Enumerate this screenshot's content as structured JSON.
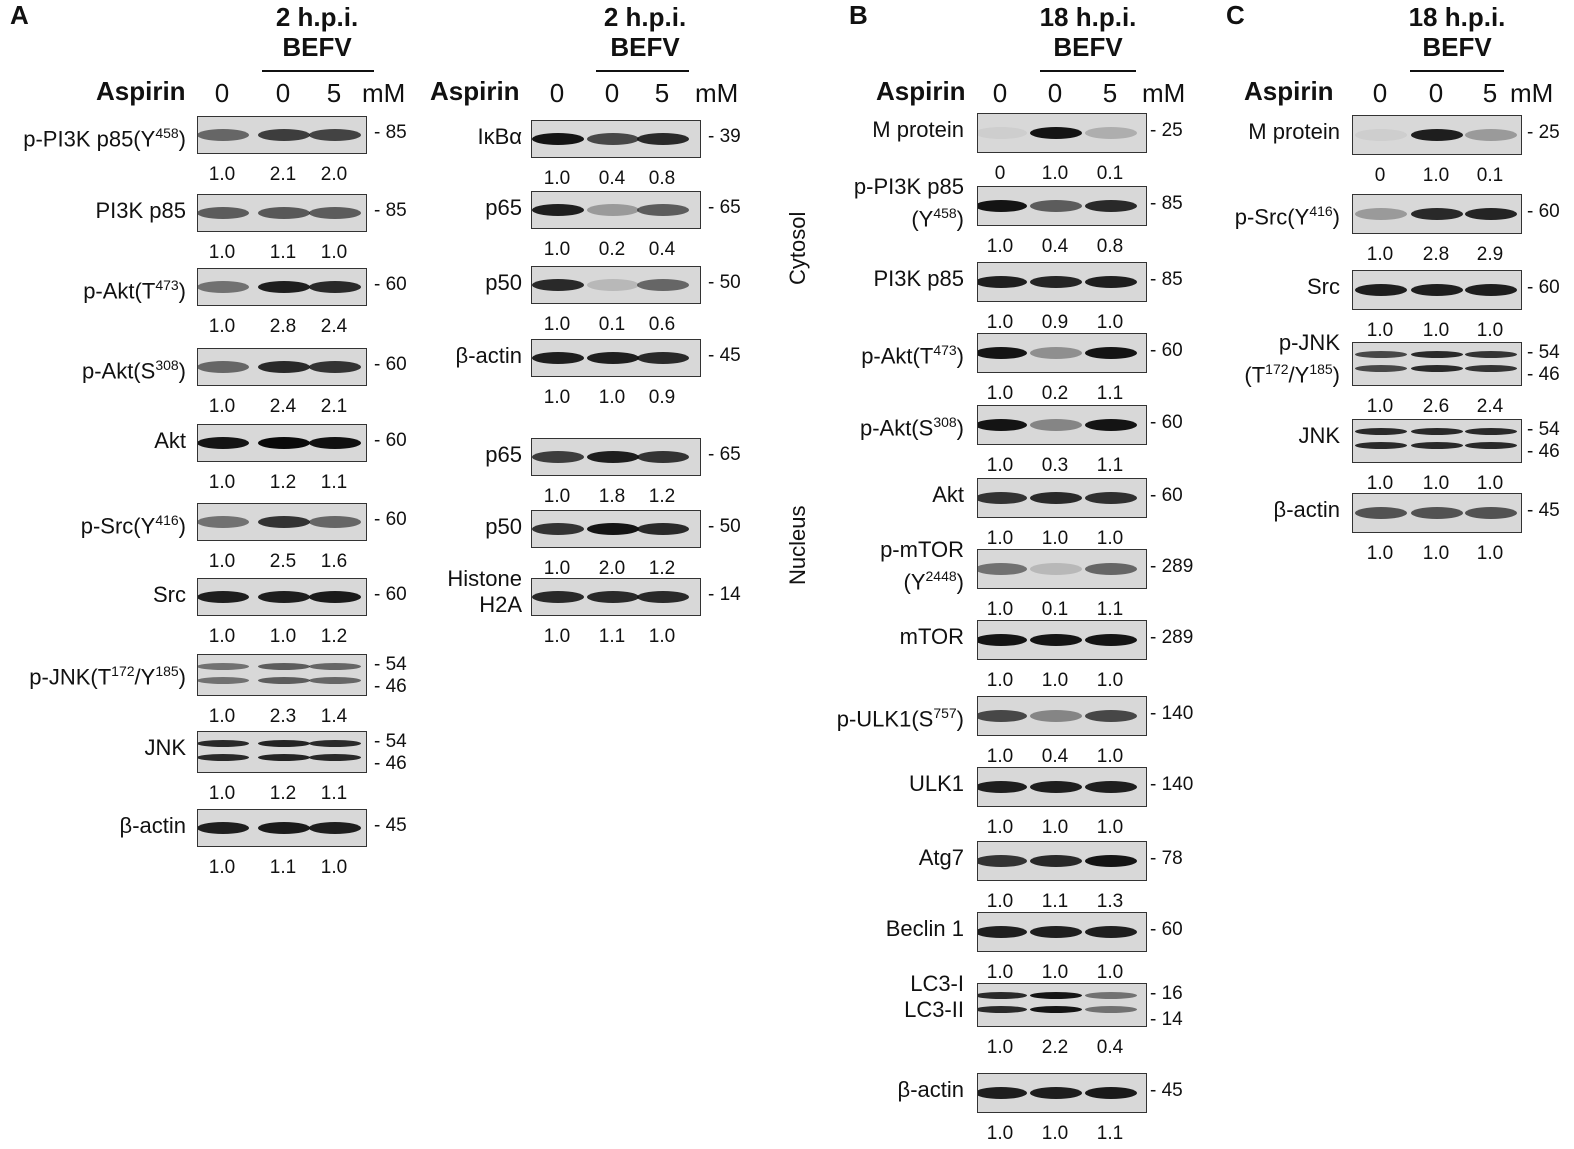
{
  "panels": [
    {
      "letter": "A",
      "header": [
        "2 h.p.i.",
        "BEFV"
      ],
      "aspirin_label": "Aspirin",
      "lanes": [
        "0",
        "0",
        "5"
      ],
      "unit": "mM",
      "blots": [
        {
          "label": "p-PI3K p85(Y<sup>458</sup>)",
          "mw": [
            "85"
          ],
          "quant": [
            "1.0",
            "2.1",
            "2.0"
          ]
        },
        {
          "label": "PI3K p85",
          "mw": [
            "85"
          ],
          "quant": [
            "1.0",
            "1.1",
            "1.0"
          ]
        },
        {
          "label": "p-Akt(T<sup>473</sup>)",
          "mw": [
            "60"
          ],
          "quant": [
            "1.0",
            "2.8",
            "2.4"
          ]
        },
        {
          "label": "p-Akt(S<sup>308</sup>)",
          "mw": [
            "60"
          ],
          "quant": [
            "1.0",
            "2.4",
            "2.1"
          ]
        },
        {
          "label": "Akt",
          "mw": [
            "60"
          ],
          "quant": [
            "1.0",
            "1.2",
            "1.1"
          ]
        },
        {
          "label": "p-Src(Y<sup>416</sup>)",
          "mw": [
            "60"
          ],
          "quant": [
            "1.0",
            "2.5",
            "1.6"
          ]
        },
        {
          "label": "Src",
          "mw": [
            "60"
          ],
          "quant": [
            "1.0",
            "1.0",
            "1.2"
          ]
        },
        {
          "label": "p-JNK(T<sup>172</sup>/Y<sup>185</sup>)",
          "mw": [
            "54",
            "46"
          ],
          "quant": [
            "1.0",
            "2.3",
            "1.4"
          ]
        },
        {
          "label": "JNK",
          "mw": [
            "54",
            "46"
          ],
          "quant": [
            "1.0",
            "1.2",
            "1.1"
          ]
        },
        {
          "label": "β-actin",
          "mw": [
            "45"
          ],
          "quant": [
            "1.0",
            "1.1",
            "1.0"
          ]
        }
      ]
    },
    {
      "letter": "",
      "header": [
        "2 h.p.i.",
        "BEFV"
      ],
      "aspirin_label": "Aspirin",
      "lanes": [
        "0",
        "0",
        "5"
      ],
      "unit": "mM",
      "blots": [
        {
          "label": "IκBα",
          "mw": [
            "39"
          ],
          "quant": [
            "1.0",
            "0.4",
            "0.8"
          ]
        },
        {
          "label": "p65",
          "mw": [
            "65"
          ],
          "quant": [
            "1.0",
            "0.2",
            "0.4"
          ]
        },
        {
          "label": "p50",
          "mw": [
            "50"
          ],
          "quant": [
            "1.0",
            "0.1",
            "0.6"
          ]
        },
        {
          "label": "β-actin",
          "mw": [
            "45"
          ],
          "quant": [
            "1.0",
            "1.0",
            "0.9"
          ]
        },
        {
          "label": "p65",
          "mw": [
            "65"
          ],
          "quant": [
            "1.0",
            "1.8",
            "1.2"
          ]
        },
        {
          "label": "p50",
          "mw": [
            "50"
          ],
          "quant": [
            "1.0",
            "2.0",
            "1.2"
          ]
        },
        {
          "label": "Histone<br>H2A",
          "mw": [
            "14"
          ],
          "quant": [
            "1.0",
            "1.1",
            "1.0"
          ]
        }
      ],
      "side_labels": [
        "Cytosol",
        "Nucleus"
      ]
    },
    {
      "letter": "B",
      "header": [
        "18 h.p.i.",
        "BEFV"
      ],
      "aspirin_label": "Aspirin",
      "lanes": [
        "0",
        "0",
        "5"
      ],
      "unit": "mM",
      "blots": [
        {
          "label": "M protein",
          "mw": [
            "25"
          ],
          "quant": [
            "0",
            "1.0",
            "0.1"
          ]
        },
        {
          "label": "p-PI3K p85<br>(Y<sup>458</sup>)",
          "mw": [
            "85"
          ],
          "quant": [
            "1.0",
            "0.4",
            "0.8"
          ]
        },
        {
          "label": "PI3K p85",
          "mw": [
            "85"
          ],
          "quant": [
            "1.0",
            "0.9",
            "1.0"
          ]
        },
        {
          "label": "p-Akt(T<sup>473</sup>)",
          "mw": [
            "60"
          ],
          "quant": [
            "1.0",
            "0.2",
            "1.1"
          ]
        },
        {
          "label": "p-Akt(S<sup>308</sup>)",
          "mw": [
            "60"
          ],
          "quant": [
            "1.0",
            "0.3",
            "1.1"
          ]
        },
        {
          "label": "Akt",
          "mw": [
            "60"
          ],
          "quant": [
            "1.0",
            "1.0",
            "1.0"
          ]
        },
        {
          "label": "p-mTOR<br>(Y<sup>2448</sup>)",
          "mw": [
            "289"
          ],
          "quant": [
            "1.0",
            "0.1",
            "1.1"
          ]
        },
        {
          "label": "mTOR",
          "mw": [
            "289"
          ],
          "quant": [
            "1.0",
            "1.0",
            "1.0"
          ]
        },
        {
          "label": "p-ULK1(S<sup>757</sup>)",
          "mw": [
            "140"
          ],
          "quant": [
            "1.0",
            "0.4",
            "1.0"
          ]
        },
        {
          "label": "ULK1",
          "mw": [
            "140"
          ],
          "quant": [
            "1.0",
            "1.0",
            "1.0"
          ]
        },
        {
          "label": "Atg7",
          "mw": [
            "78"
          ],
          "quant": [
            "1.0",
            "1.1",
            "1.3"
          ]
        },
        {
          "label": "Beclin 1",
          "mw": [
            "60"
          ],
          "quant": [
            "1.0",
            "1.0",
            "1.0"
          ]
        },
        {
          "label": "LC3-I<br>LC3-II",
          "mw": [
            "16",
            "14"
          ],
          "quant": [
            "1.0",
            "2.2",
            "0.4"
          ]
        },
        {
          "label": "β-actin",
          "mw": [
            "45"
          ],
          "quant": [
            "1.0",
            "1.0",
            "1.1"
          ]
        }
      ]
    },
    {
      "letter": "C",
      "header": [
        "18 h.p.i.",
        "BEFV"
      ],
      "aspirin_label": "Aspirin",
      "lanes": [
        "0",
        "0",
        "5"
      ],
      "unit": "mM",
      "blots": [
        {
          "label": "M protein",
          "mw": [
            "25"
          ],
          "quant": [
            "0",
            "1.0",
            "0.1"
          ]
        },
        {
          "label": "p-Src(Y<sup>416</sup>)",
          "mw": [
            "60"
          ],
          "quant": [
            "1.0",
            "2.8",
            "2.9"
          ]
        },
        {
          "label": "Src",
          "mw": [
            "60"
          ],
          "quant": [
            "1.0",
            "1.0",
            "1.0"
          ]
        },
        {
          "label": "p-JNK<br>(T<sup>172</sup>/Y<sup>185</sup>)",
          "mw": [
            "54",
            "46"
          ],
          "quant": [
            "1.0",
            "2.6",
            "2.4"
          ]
        },
        {
          "label": "JNK",
          "mw": [
            "54",
            "46"
          ],
          "quant": [
            "1.0",
            "1.0",
            "1.0"
          ]
        },
        {
          "label": "β-actin",
          "mw": [
            "45"
          ],
          "quant": [
            "1.0",
            "1.0",
            "1.0"
          ]
        }
      ]
    }
  ]
}
